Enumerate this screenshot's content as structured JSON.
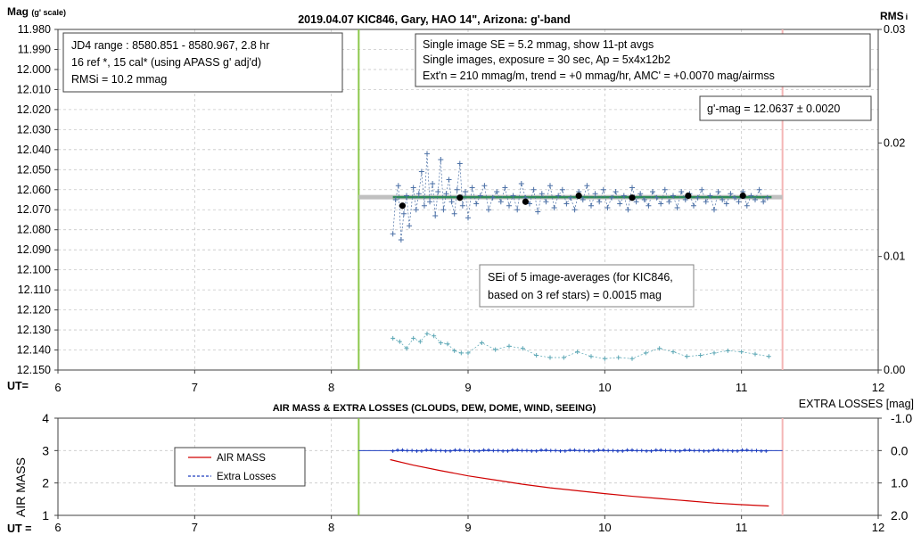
{
  "top": {
    "title": "2019.04.07 KIC846, Gary, HAO 14\", Arizona: g'-band",
    "y_label_main": "Mag",
    "y_label_sub": "(g' scale)",
    "y2_label_main": "RMS",
    "y2_label_sub": "i",
    "x_prefix": "UT=",
    "info_left": [
      "JD4 range : 8580.851 - 8580.967,  2.8  hr",
      "16 ref *, 15 cal* (using APASS g' adj'd)",
      "RMSi = 10.2 mmag"
    ],
    "info_right": [
      "Single image SE = 5.2 mmag, show  11-pt avgs",
      "Single images, exposure = 30 sec, Ap = 5x4x12b2",
      "Ext'n = 210 mmag/m, trend =  +0 mmag/hr, AMC' = +0.0070 mag/airmss"
    ],
    "gmag_box": "g'-mag = 12.0637 ± 0.0020",
    "sei_box": [
      "SEi of 5 image-averages (for KIC846,",
      "based on 3 ref stars) = 0.0015 mag"
    ]
  },
  "bottom": {
    "title": "AIR MASS & EXTRA LOSSES (CLOUDS, DEW, DOME, WIND, SEEING)",
    "y_label": "AIR MASS",
    "y2_label": "EXTRA LOSSES [mag]",
    "x_prefix": "UT =",
    "legend": [
      "AIR MASS",
      "Extra Losses"
    ]
  },
  "colors": {
    "mag_points": "#4a6fa5",
    "mag_mean_line": "#2e8b57",
    "mag_mean_band": "#c0c0c0",
    "avg_points": "#000000",
    "rms_points": "#5aa6b4",
    "start_line": "#8cc84b",
    "end_line": "#f4b6b6",
    "air_mass": "#d00000",
    "extra_losses": "#1f3fbf"
  },
  "chart_data": [
    {
      "type": "scatter",
      "title": "2019.04.07 KIC846, Gary, HAO 14\", Arizona: g'-band",
      "xlabel": "UT=",
      "ylabel": "Mag (g' scale)",
      "y2label": "RMSi",
      "xlim": [
        6,
        12
      ],
      "ylim": [
        11.98,
        12.15
      ],
      "y_inverted": true,
      "y2lim": [
        0.0,
        0.03
      ],
      "x_ticks": [
        "6",
        "7",
        "8",
        "9",
        "10",
        "11",
        "12"
      ],
      "y_ticks": [
        "11.980",
        "11.990",
        "12.000",
        "12.010",
        "12.020",
        "12.030",
        "12.040",
        "12.050",
        "12.060",
        "12.070",
        "12.080",
        "12.090",
        "12.100",
        "12.110",
        "12.120",
        "12.130",
        "12.140",
        "12.150"
      ],
      "y2_ticks": [
        "0.00",
        "0.01",
        "0.02",
        "0.03"
      ],
      "grid": true,
      "markers": {
        "session_start_ut": 8.2,
        "session_end_ut": 11.3
      },
      "mean_mag": 12.0637,
      "mean_mag_range": [
        8.2,
        11.3
      ],
      "series": [
        {
          "name": "single images",
          "x": [
            8.45,
            8.47,
            8.49,
            8.51,
            8.53,
            8.55,
            8.57,
            8.6,
            8.62,
            8.64,
            8.66,
            8.68,
            8.7,
            8.72,
            8.74,
            8.76,
            8.78,
            8.8,
            8.82,
            8.84,
            8.86,
            8.88,
            8.9,
            8.92,
            8.94,
            8.96,
            8.98,
            9.0,
            9.03,
            9.06,
            9.09,
            9.12,
            9.15,
            9.18,
            9.21,
            9.24,
            9.27,
            9.3,
            9.33,
            9.36,
            9.39,
            9.42,
            9.45,
            9.48,
            9.51,
            9.54,
            9.57,
            9.6,
            9.63,
            9.66,
            9.69,
            9.72,
            9.75,
            9.78,
            9.81,
            9.84,
            9.87,
            9.9,
            9.93,
            9.96,
            9.99,
            10.02,
            10.05,
            10.08,
            10.11,
            10.14,
            10.17,
            10.2,
            10.23,
            10.26,
            10.29,
            10.32,
            10.35,
            10.38,
            10.41,
            10.44,
            10.47,
            10.5,
            10.53,
            10.56,
            10.59,
            10.62,
            10.65,
            10.68,
            10.71,
            10.74,
            10.77,
            10.8,
            10.83,
            10.86,
            10.89,
            10.92,
            10.95,
            10.98,
            11.01,
            11.04,
            11.07,
            11.1,
            11.13,
            11.16,
            11.19
          ],
          "values": [
            12.082,
            12.065,
            12.058,
            12.085,
            12.072,
            12.063,
            12.078,
            12.059,
            12.07,
            12.062,
            12.051,
            12.068,
            12.042,
            12.066,
            12.057,
            12.073,
            12.061,
            12.045,
            12.07,
            12.062,
            12.055,
            12.066,
            12.072,
            12.06,
            12.047,
            12.068,
            12.061,
            12.074,
            12.059,
            12.067,
            12.063,
            12.058,
            12.07,
            12.064,
            12.061,
            12.066,
            12.059,
            12.068,
            12.063,
            12.07,
            12.057,
            12.064,
            12.067,
            12.06,
            12.071,
            12.062,
            12.066,
            12.058,
            12.069,
            12.063,
            12.06,
            12.067,
            12.064,
            12.07,
            12.061,
            12.065,
            12.058,
            12.068,
            12.062,
            12.066,
            12.06,
            12.069,
            12.064,
            12.061,
            12.067,
            12.063,
            12.07,
            12.059,
            12.066,
            12.062,
            12.065,
            12.068,
            12.061,
            12.064,
            12.067,
            12.06,
            12.066,
            12.063,
            12.069,
            12.061,
            12.065,
            12.062,
            12.068,
            12.064,
            12.06,
            12.066,
            12.063,
            12.07,
            12.061,
            12.065,
            12.067,
            12.062,
            12.064,
            12.066,
            12.061,
            12.068,
            12.063,
            12.065,
            12.06,
            12.066,
            12.064
          ]
        },
        {
          "name": "image averages",
          "x": [
            8.52,
            8.94,
            9.42,
            9.81,
            10.2,
            10.61,
            11.01
          ],
          "values": [
            12.068,
            12.064,
            12.066,
            12.063,
            12.064,
            12.063,
            12.063
          ]
        },
        {
          "name": "RMSi",
          "axis": "y2",
          "x": [
            8.45,
            8.5,
            8.55,
            8.6,
            8.65,
            8.7,
            8.75,
            8.8,
            8.85,
            8.9,
            8.95,
            9.0,
            9.1,
            9.2,
            9.3,
            9.4,
            9.5,
            9.6,
            9.7,
            9.8,
            9.9,
            10.0,
            10.1,
            10.2,
            10.3,
            10.4,
            10.5,
            10.6,
            10.7,
            10.8,
            10.9,
            11.0,
            11.1,
            11.2
          ],
          "values": [
            0.0028,
            0.0025,
            0.0019,
            0.0028,
            0.0025,
            0.0032,
            0.003,
            0.0024,
            0.0023,
            0.0017,
            0.0015,
            0.0015,
            0.0024,
            0.0018,
            0.0021,
            0.0019,
            0.0013,
            0.0011,
            0.0011,
            0.0016,
            0.0012,
            0.001,
            0.0011,
            0.001,
            0.0015,
            0.0019,
            0.0016,
            0.0012,
            0.0013,
            0.0015,
            0.0017,
            0.0016,
            0.0014,
            0.0012
          ]
        }
      ],
      "annotations": [
        "JD4 range : 8580.851 - 8580.967,  2.8  hr",
        "g'-mag = 12.0637 ± 0.0020"
      ]
    },
    {
      "type": "line",
      "title": "AIR MASS & EXTRA LOSSES (CLOUDS, DEW, DOME, WIND, SEEING)",
      "xlabel": "UT =",
      "ylabel": "AIR MASS",
      "y2label": "EXTRA LOSSES [mag]",
      "xlim": [
        6,
        12
      ],
      "ylim": [
        1,
        4
      ],
      "y2lim": [
        -1.0,
        2.0
      ],
      "y2_inverted": true,
      "x_ticks": [
        "6",
        "7",
        "8",
        "9",
        "10",
        "11",
        "12"
      ],
      "y_ticks": [
        "1",
        "2",
        "3",
        "4"
      ],
      "y2_ticks": [
        "-1.0",
        "0.0",
        "1.0",
        "2.0"
      ],
      "grid": true,
      "legend": "left",
      "series": [
        {
          "name": "AIR MASS",
          "x": [
            8.43,
            8.6,
            8.8,
            9.0,
            9.2,
            9.4,
            9.6,
            9.8,
            10.0,
            10.2,
            10.4,
            10.6,
            10.8,
            11.0,
            11.2
          ],
          "values": [
            2.72,
            2.55,
            2.38,
            2.22,
            2.09,
            1.96,
            1.85,
            1.76,
            1.67,
            1.59,
            1.52,
            1.45,
            1.38,
            1.33,
            1.29
          ]
        },
        {
          "name": "Extra Losses",
          "axis": "y2",
          "x": [
            8.2,
            11.3
          ],
          "values": [
            0.0,
            0.0
          ]
        }
      ]
    }
  ]
}
